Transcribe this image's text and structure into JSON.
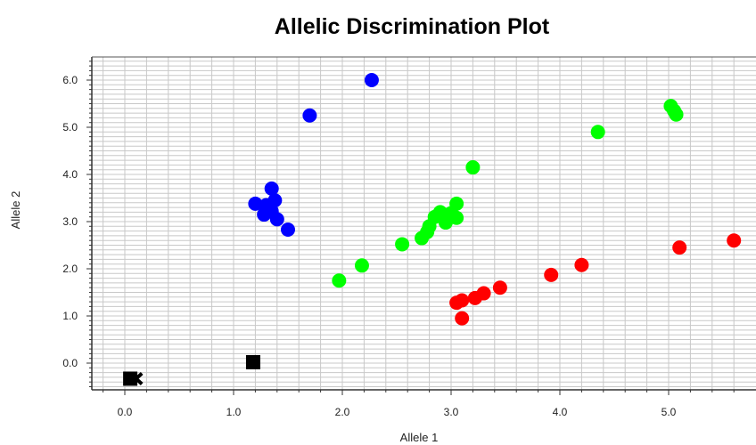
{
  "chart_data": {
    "type": "scatter",
    "title": "Allelic Discrimination Plot",
    "xlabel": "Allele 1",
    "ylabel": "Allele 2",
    "xlim": [
      -0.3,
      5.7
    ],
    "ylim": [
      -0.55,
      6.5
    ],
    "grid": true,
    "x_ticks": [
      "0.0",
      "1.0",
      "2.0",
      "3.0",
      "4.0",
      "5.0"
    ],
    "y_ticks": [
      "0.0",
      "1.0",
      "2.0",
      "3.0",
      "4.0",
      "5.0",
      "6.0"
    ],
    "series": [
      {
        "color": "#0000ff",
        "marker": "circle",
        "points": [
          [
            2.27,
            6.0
          ],
          [
            1.7,
            5.25
          ],
          [
            1.35,
            3.7
          ],
          [
            1.2,
            3.38
          ],
          [
            1.3,
            3.35
          ],
          [
            1.38,
            3.45
          ],
          [
            1.28,
            3.15
          ],
          [
            1.35,
            3.22
          ],
          [
            1.4,
            3.05
          ],
          [
            1.5,
            2.83
          ]
        ]
      },
      {
        "color": "#00ff00",
        "marker": "circle",
        "points": [
          [
            5.02,
            5.45
          ],
          [
            5.05,
            5.35
          ],
          [
            5.07,
            5.27
          ],
          [
            4.35,
            4.9
          ],
          [
            3.2,
            4.15
          ],
          [
            3.05,
            3.38
          ],
          [
            3.0,
            3.18
          ],
          [
            2.9,
            3.2
          ],
          [
            2.85,
            3.1
          ],
          [
            3.05,
            3.08
          ],
          [
            2.95,
            2.98
          ],
          [
            2.8,
            2.9
          ],
          [
            2.78,
            2.78
          ],
          [
            2.73,
            2.65
          ],
          [
            2.55,
            2.52
          ],
          [
            2.18,
            2.07
          ],
          [
            1.97,
            1.75
          ]
        ]
      },
      {
        "color": "#ff0000",
        "marker": "circle",
        "points": [
          [
            5.6,
            2.6
          ],
          [
            5.1,
            2.45
          ],
          [
            4.2,
            2.08
          ],
          [
            3.92,
            1.87
          ],
          [
            3.45,
            1.6
          ],
          [
            3.3,
            1.48
          ],
          [
            3.22,
            1.38
          ],
          [
            3.1,
            1.33
          ],
          [
            3.05,
            1.28
          ],
          [
            3.1,
            0.95
          ]
        ]
      },
      {
        "color": "#000000",
        "marker": "square",
        "points": [
          [
            1.18,
            0.02
          ],
          [
            0.05,
            -0.33
          ]
        ]
      },
      {
        "color": "#000000",
        "marker": "x",
        "points": [
          [
            0.1,
            -0.33
          ]
        ]
      }
    ]
  }
}
